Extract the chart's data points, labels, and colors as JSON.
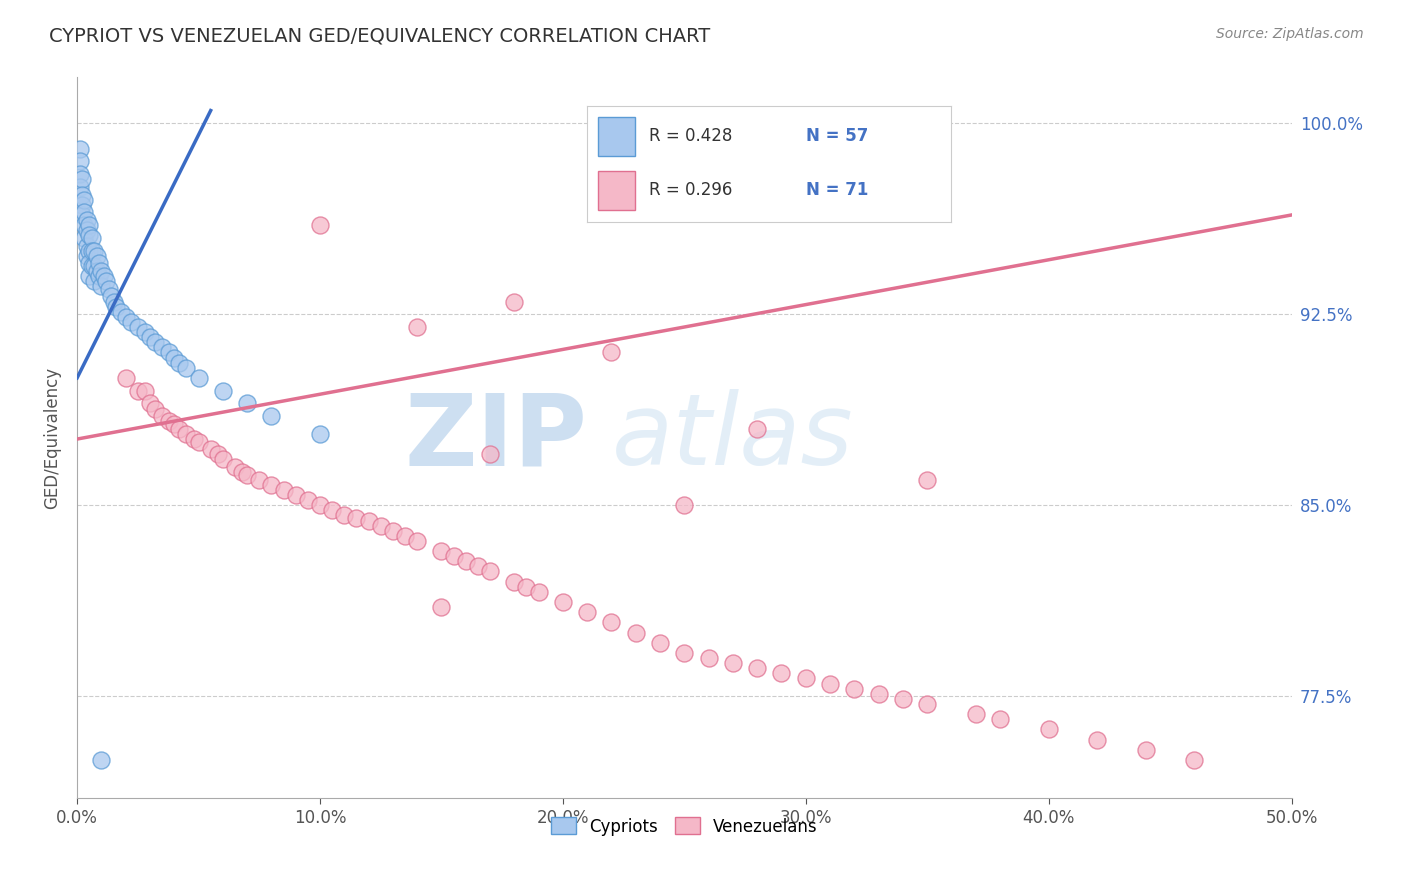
{
  "title": "CYPRIOT VS VENEZUELAN GED/EQUIVALENCY CORRELATION CHART",
  "source": "Source: ZipAtlas.com",
  "ylabel": "GED/Equivalency",
  "xmin": 0.0,
  "xmax": 0.5,
  "ymin": 0.735,
  "ymax": 1.018,
  "yticks": [
    0.775,
    0.85,
    0.925,
    1.0
  ],
  "ytick_labels": [
    "77.5%",
    "85.0%",
    "92.5%",
    "100.0%"
  ],
  "xticks": [
    0.0,
    0.1,
    0.2,
    0.3,
    0.4,
    0.5
  ],
  "xtick_labels": [
    "0.0%",
    "10.0%",
    "20.0%",
    "30.0%",
    "40.0%",
    "50.0%"
  ],
  "cypriot_color": "#A8C8EE",
  "venezuelan_color": "#F5B8C8",
  "cypriot_edge": "#5B9BD5",
  "venezuelan_edge": "#E07090",
  "trend_blue": "#3A6BC4",
  "trend_pink": "#E07090",
  "watermark_zip": "ZIP",
  "watermark_atlas": "atlas",
  "cypriot_x": [
    0.001,
    0.001,
    0.001,
    0.001,
    0.002,
    0.002,
    0.002,
    0.002,
    0.003,
    0.003,
    0.003,
    0.003,
    0.004,
    0.004,
    0.004,
    0.004,
    0.005,
    0.005,
    0.005,
    0.005,
    0.005,
    0.006,
    0.006,
    0.006,
    0.007,
    0.007,
    0.007,
    0.008,
    0.008,
    0.009,
    0.009,
    0.01,
    0.01,
    0.011,
    0.012,
    0.013,
    0.014,
    0.015,
    0.016,
    0.018,
    0.02,
    0.022,
    0.025,
    0.028,
    0.03,
    0.032,
    0.035,
    0.038,
    0.04,
    0.042,
    0.045,
    0.05,
    0.06,
    0.07,
    0.08,
    0.1,
    0.01
  ],
  "cypriot_y": [
    0.99,
    0.985,
    0.98,
    0.975,
    0.978,
    0.972,
    0.968,
    0.964,
    0.97,
    0.965,
    0.96,
    0.955,
    0.962,
    0.958,
    0.952,
    0.948,
    0.96,
    0.956,
    0.95,
    0.945,
    0.94,
    0.955,
    0.95,
    0.944,
    0.95,
    0.944,
    0.938,
    0.948,
    0.942,
    0.945,
    0.94,
    0.942,
    0.936,
    0.94,
    0.938,
    0.935,
    0.932,
    0.93,
    0.928,
    0.926,
    0.924,
    0.922,
    0.92,
    0.918,
    0.916,
    0.914,
    0.912,
    0.91,
    0.908,
    0.906,
    0.904,
    0.9,
    0.895,
    0.89,
    0.885,
    0.878,
    0.75
  ],
  "venezuelan_x": [
    0.02,
    0.025,
    0.028,
    0.03,
    0.032,
    0.035,
    0.038,
    0.04,
    0.042,
    0.045,
    0.048,
    0.05,
    0.055,
    0.058,
    0.06,
    0.065,
    0.068,
    0.07,
    0.075,
    0.08,
    0.085,
    0.09,
    0.095,
    0.1,
    0.105,
    0.11,
    0.115,
    0.12,
    0.125,
    0.13,
    0.135,
    0.14,
    0.15,
    0.155,
    0.16,
    0.165,
    0.17,
    0.18,
    0.185,
    0.19,
    0.2,
    0.21,
    0.22,
    0.23,
    0.24,
    0.25,
    0.26,
    0.27,
    0.28,
    0.29,
    0.3,
    0.31,
    0.32,
    0.33,
    0.34,
    0.35,
    0.37,
    0.38,
    0.4,
    0.42,
    0.44,
    0.46,
    0.1,
    0.14,
    0.18,
    0.22,
    0.28,
    0.15,
    0.17,
    0.25,
    0.35
  ],
  "venezuelan_y": [
    0.9,
    0.895,
    0.895,
    0.89,
    0.888,
    0.885,
    0.883,
    0.882,
    0.88,
    0.878,
    0.876,
    0.875,
    0.872,
    0.87,
    0.868,
    0.865,
    0.863,
    0.862,
    0.86,
    0.858,
    0.856,
    0.854,
    0.852,
    0.85,
    0.848,
    0.846,
    0.845,
    0.844,
    0.842,
    0.84,
    0.838,
    0.836,
    0.832,
    0.83,
    0.828,
    0.826,
    0.824,
    0.82,
    0.818,
    0.816,
    0.812,
    0.808,
    0.804,
    0.8,
    0.796,
    0.792,
    0.79,
    0.788,
    0.786,
    0.784,
    0.782,
    0.78,
    0.778,
    0.776,
    0.774,
    0.772,
    0.768,
    0.766,
    0.762,
    0.758,
    0.754,
    0.75,
    0.96,
    0.92,
    0.93,
    0.91,
    0.88,
    0.81,
    0.87,
    0.85,
    0.86
  ],
  "blue_trend_x0": 0.0,
  "blue_trend_y0": 0.9,
  "blue_trend_x1": 0.055,
  "blue_trend_y1": 1.005,
  "pink_trend_x0": 0.0,
  "pink_trend_y0": 0.876,
  "pink_trend_x1": 0.5,
  "pink_trend_y1": 0.964
}
